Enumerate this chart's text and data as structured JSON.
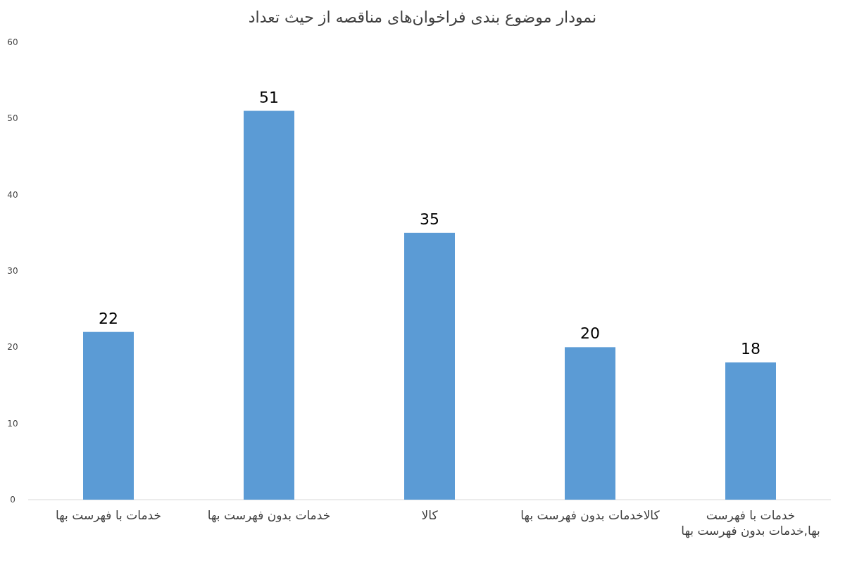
{
  "chart_data": {
    "type": "bar",
    "title": "نمودار موضوع بندی فراخوان‌های مناقصه از حیث تعداد",
    "categories": [
      "خدمات با فهرست بها",
      "خدمات بدون فهرست بها",
      "کالا",
      "کالاخدمات بدون فهرست بها",
      "خدمات با فهرست بها,خدمات بدون فهرست بها"
    ],
    "values": [
      22,
      51,
      35,
      20,
      18
    ],
    "color": "#5b9bd5",
    "ylim": [
      0,
      60
    ],
    "yticks": [
      0,
      10,
      20,
      30,
      40,
      50,
      60
    ],
    "grid": false,
    "data_labels": true
  }
}
